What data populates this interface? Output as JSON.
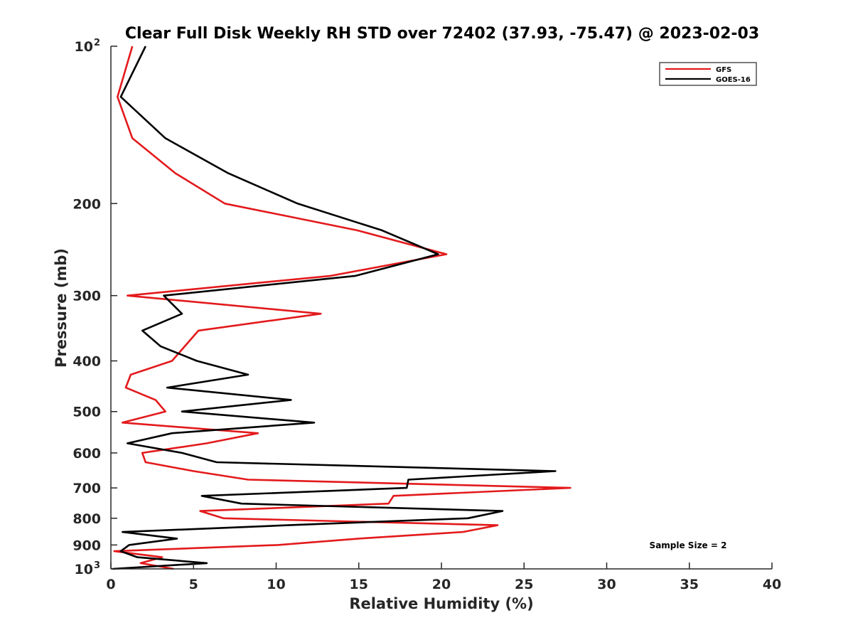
{
  "chart_data": {
    "type": "line",
    "title": "Clear Full Disk Weekly RH STD over 72402 (37.93, -75.47) @ 2023-02-03",
    "xlabel": "Relative Humidity (%)",
    "ylabel": "Pressure (mb)",
    "xlim": [
      0,
      40
    ],
    "ylim": [
      100,
      1000
    ],
    "yscale": "log",
    "y_reversed": true,
    "x_ticks": [
      {
        "value": 0,
        "label": "0"
      },
      {
        "value": 5,
        "label": "5"
      },
      {
        "value": 10,
        "label": "10"
      },
      {
        "value": 15,
        "label": "15"
      },
      {
        "value": 20,
        "label": "20"
      },
      {
        "value": 25,
        "label": "25"
      },
      {
        "value": 30,
        "label": "30"
      },
      {
        "value": 35,
        "label": "35"
      },
      {
        "value": 40,
        "label": "40"
      }
    ],
    "y_ticks": [
      {
        "value": 100,
        "base": "10",
        "exp": "2"
      },
      {
        "value": 200,
        "label": "200"
      },
      {
        "value": 300,
        "label": "300"
      },
      {
        "value": 400,
        "label": "400"
      },
      {
        "value": 500,
        "label": "500"
      },
      {
        "value": 600,
        "label": "600"
      },
      {
        "value": 700,
        "label": "700"
      },
      {
        "value": 800,
        "label": "800"
      },
      {
        "value": 900,
        "label": "900"
      },
      {
        "value": 1000,
        "base": "10",
        "exp": "3"
      }
    ],
    "legend_position": "top-right",
    "annotation": "Sample Size = 2",
    "series": [
      {
        "name": "GFS",
        "color": "#e31a1c",
        "points": [
          [
            1.3,
            100
          ],
          [
            0.4,
            125
          ],
          [
            1.3,
            150
          ],
          [
            3.9,
            175
          ],
          [
            6.9,
            200
          ],
          [
            14.9,
            225
          ],
          [
            20.3,
            250
          ],
          [
            13.3,
            275
          ],
          [
            1.0,
            300
          ],
          [
            12.7,
            325
          ],
          [
            5.3,
            350
          ],
          [
            3.7,
            400
          ],
          [
            1.2,
            425
          ],
          [
            0.9,
            450
          ],
          [
            2.7,
            475
          ],
          [
            3.3,
            500
          ],
          [
            0.7,
            525
          ],
          [
            8.9,
            550
          ],
          [
            5.8,
            575
          ],
          [
            1.9,
            600
          ],
          [
            2.1,
            625
          ],
          [
            5.0,
            650
          ],
          [
            8.3,
            675
          ],
          [
            27.8,
            700
          ],
          [
            17.1,
            725
          ],
          [
            16.8,
            750
          ],
          [
            5.4,
            775
          ],
          [
            6.8,
            800
          ],
          [
            23.4,
            825
          ],
          [
            21.3,
            850
          ],
          [
            15.0,
            875
          ],
          [
            10.1,
            900
          ],
          [
            0.2,
            925
          ],
          [
            3.1,
            950
          ],
          [
            1.8,
            975
          ],
          [
            3.8,
            1000
          ]
        ]
      },
      {
        "name": "GOES-16",
        "color": "#000000",
        "points": [
          [
            2.1,
            100
          ],
          [
            0.6,
            125
          ],
          [
            3.3,
            150
          ],
          [
            7.1,
            175
          ],
          [
            11.3,
            200
          ],
          [
            16.4,
            225
          ],
          [
            19.8,
            250
          ],
          [
            14.8,
            275
          ],
          [
            3.2,
            300
          ],
          [
            4.3,
            325
          ],
          [
            1.9,
            350
          ],
          [
            3.0,
            375
          ],
          [
            5.2,
            400
          ],
          [
            8.3,
            425
          ],
          [
            3.4,
            450
          ],
          [
            10.9,
            475
          ],
          [
            4.3,
            500
          ],
          [
            12.3,
            525
          ],
          [
            3.7,
            550
          ],
          [
            1.0,
            575
          ],
          [
            4.3,
            600
          ],
          [
            6.4,
            625
          ],
          [
            26.9,
            650
          ],
          [
            18.0,
            675
          ],
          [
            17.9,
            700
          ],
          [
            5.5,
            725
          ],
          [
            7.9,
            750
          ],
          [
            23.7,
            775
          ],
          [
            21.6,
            800
          ],
          [
            10.7,
            825
          ],
          [
            0.7,
            850
          ],
          [
            4.0,
            875
          ],
          [
            1.1,
            900
          ],
          [
            0.6,
            925
          ],
          [
            1.6,
            950
          ],
          [
            5.8,
            975
          ],
          [
            0.1,
            1000
          ]
        ]
      }
    ]
  }
}
